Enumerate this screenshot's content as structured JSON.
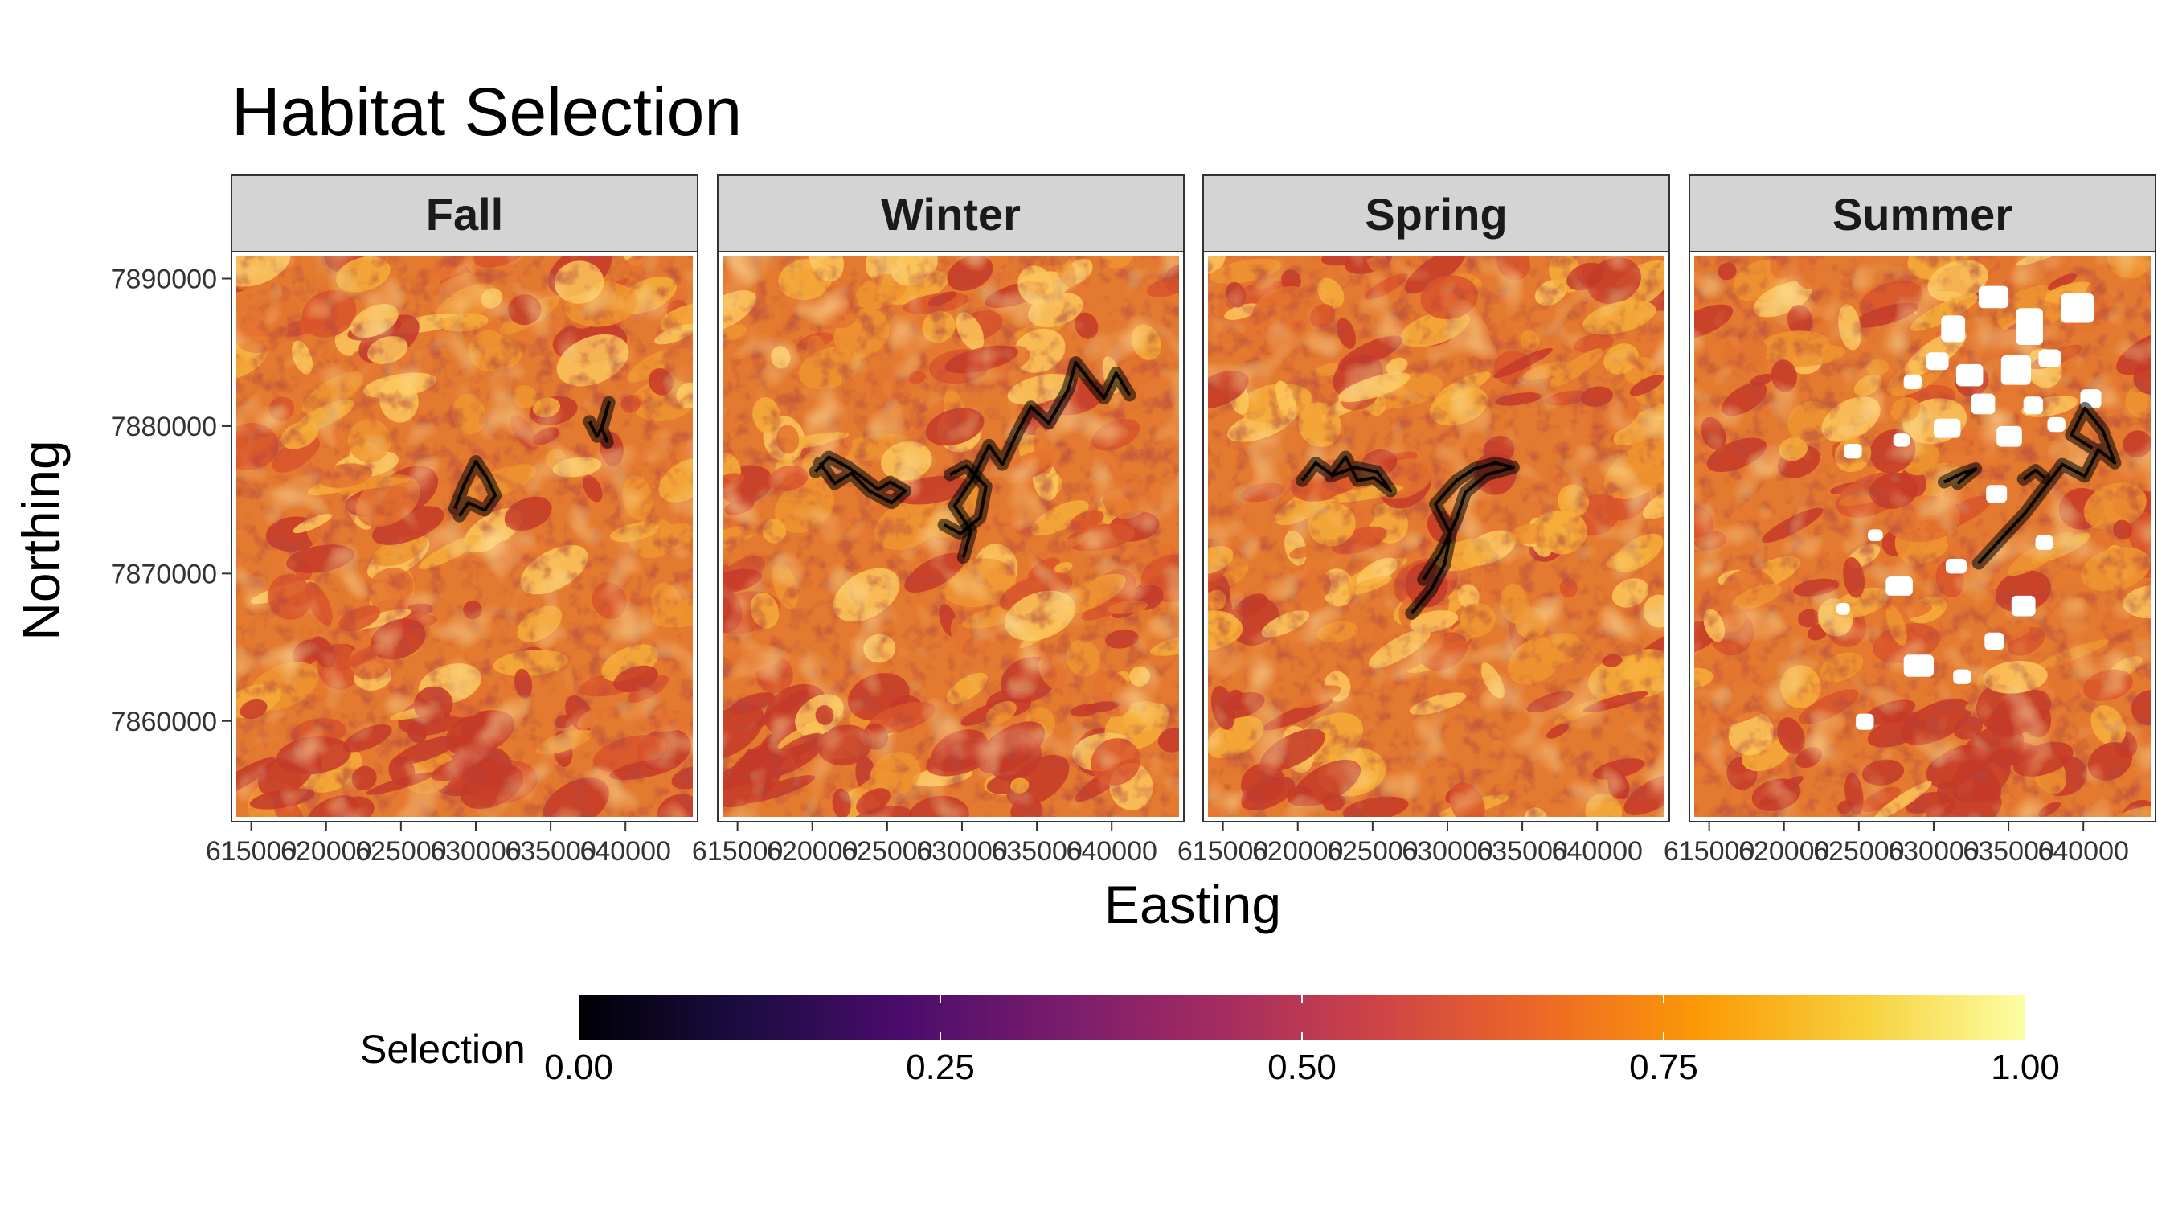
{
  "chart_data": {
    "type": "heatmap",
    "title": "Habitat Selection",
    "xlabel": "Easting",
    "ylabel": "Northing",
    "facets": [
      "Fall",
      "Winter",
      "Spring",
      "Summer"
    ],
    "xlim": [
      614000,
      644500
    ],
    "ylim": [
      7853500,
      7891500
    ],
    "x_ticks": [
      615000,
      620000,
      625000,
      630000,
      635000,
      640000
    ],
    "x_tick_labels": [
      "615000",
      "620000",
      "625000",
      "630000",
      "635000",
      "640000"
    ],
    "y_ticks": [
      7860000,
      7870000,
      7880000,
      7890000
    ],
    "y_tick_labels": [
      "7860000",
      "7870000",
      "7880000",
      "7890000"
    ],
    "grid": false,
    "legend": {
      "title": "Selection",
      "position": "bottom",
      "range": [
        0,
        1
      ],
      "ticks": [
        0,
        0.25,
        0.5,
        0.75,
        1
      ],
      "tick_labels": [
        "0.00",
        "0.25",
        "0.50",
        "0.75",
        "1.00"
      ],
      "colormap": "inferno",
      "colors": [
        "#000004",
        "#1b0c41",
        "#4a0c6b",
        "#781c6d",
        "#a52c60",
        "#cf4446",
        "#ed6925",
        "#fb9b06",
        "#f7d13d",
        "#fcffa4"
      ]
    },
    "raster_colors": [
      "#c53a28",
      "#d9552a",
      "#e4742f",
      "#ef9430",
      "#f6ad3a",
      "#fbc65a"
    ],
    "track_color": "#000000",
    "tracks": {
      "Fall": [
        [
          [
            628600,
            7874400
          ],
          [
            629200,
            7876000
          ],
          [
            630000,
            7877600
          ],
          [
            630800,
            7876400
          ],
          [
            631300,
            7875300
          ],
          [
            630600,
            7874300
          ],
          [
            629500,
            7874800
          ],
          [
            628900,
            7873900
          ]
        ],
        [
          [
            637600,
            7880300
          ],
          [
            638100,
            7879300
          ],
          [
            638500,
            7880100
          ],
          [
            638900,
            7881600
          ],
          [
            638400,
            7879900
          ],
          [
            638800,
            7878900
          ]
        ]
      ],
      "Winter": [
        [
          [
            620200,
            7876900
          ],
          [
            621100,
            7877900
          ],
          [
            622400,
            7877200
          ],
          [
            623500,
            7876400
          ],
          [
            624400,
            7875700
          ],
          [
            625200,
            7876200
          ],
          [
            626200,
            7875600
          ],
          [
            625300,
            7874800
          ],
          [
            623800,
            7875600
          ],
          [
            622600,
            7876800
          ],
          [
            621500,
            7876100
          ],
          [
            620500,
            7877500
          ]
        ],
        [
          [
            630100,
            7871100
          ],
          [
            630600,
            7872900
          ],
          [
            629500,
            7874600
          ],
          [
            630700,
            7876400
          ],
          [
            631800,
            7878700
          ],
          [
            632700,
            7877400
          ],
          [
            633700,
            7879600
          ],
          [
            634600,
            7881300
          ],
          [
            635800,
            7880200
          ],
          [
            637100,
            7882500
          ],
          [
            637600,
            7884300
          ],
          [
            638600,
            7883000
          ],
          [
            639500,
            7881900
          ],
          [
            640300,
            7883600
          ],
          [
            641200,
            7882100
          ]
        ],
        [
          [
            628800,
            7873300
          ],
          [
            629900,
            7872700
          ],
          [
            631200,
            7873800
          ],
          [
            631600,
            7875900
          ],
          [
            630300,
            7877300
          ],
          [
            629200,
            7876700
          ]
        ]
      ],
      "Spring": [
        [
          [
            620300,
            7876300
          ],
          [
            621200,
            7877500
          ],
          [
            622300,
            7876700
          ],
          [
            623200,
            7877900
          ],
          [
            624000,
            7876300
          ],
          [
            625100,
            7876500
          ],
          [
            626200,
            7875600
          ],
          [
            625300,
            7876900
          ],
          [
            623800,
            7877200
          ],
          [
            622200,
            7876600
          ]
        ],
        [
          [
            627600,
            7867300
          ],
          [
            628900,
            7868900
          ],
          [
            629800,
            7870600
          ],
          [
            630200,
            7872700
          ],
          [
            629200,
            7874700
          ],
          [
            630600,
            7876300
          ],
          [
            631800,
            7877100
          ],
          [
            633200,
            7877500
          ],
          [
            634400,
            7877200
          ],
          [
            632600,
            7876700
          ],
          [
            631200,
            7875500
          ],
          [
            630600,
            7873700
          ],
          [
            629600,
            7871500
          ],
          [
            628400,
            7869600
          ]
        ]
      ],
      "Summer": [
        [
          [
            633000,
            7870700
          ],
          [
            636100,
            7874100
          ],
          [
            638600,
            7877400
          ],
          [
            640100,
            7876600
          ],
          [
            641000,
            7878400
          ],
          [
            642100,
            7877500
          ],
          [
            641300,
            7879700
          ],
          [
            640100,
            7881200
          ],
          [
            639200,
            7879400
          ],
          [
            640600,
            7878500
          ]
        ],
        [
          [
            630700,
            7876200
          ],
          [
            631900,
            7876800
          ],
          [
            632800,
            7877100
          ],
          [
            631600,
            7876100
          ]
        ],
        [
          [
            636000,
            7876400
          ],
          [
            636800,
            7877000
          ],
          [
            637400,
            7876500
          ]
        ]
      ]
    },
    "missing_data_regions": {
      "Summer": [
        [
          630500,
          7887500,
          1600,
          1800
        ],
        [
          633000,
          7889500,
          2000,
          1500
        ],
        [
          635500,
          7888000,
          1800,
          2500
        ],
        [
          638500,
          7889000,
          2200,
          2000
        ],
        [
          629500,
          7885000,
          1500,
          1200
        ],
        [
          631500,
          7884200,
          1800,
          1500
        ],
        [
          634500,
          7884800,
          2000,
          2000
        ],
        [
          637000,
          7885200,
          1500,
          1200
        ],
        [
          628000,
          7883500,
          1200,
          1000
        ],
        [
          632500,
          7882200,
          1600,
          1400
        ],
        [
          636000,
          7882000,
          1300,
          1200
        ],
        [
          639800,
          7882500,
          1400,
          1300
        ],
        [
          630000,
          7880500,
          1800,
          1300
        ],
        [
          634200,
          7880000,
          1700,
          1400
        ],
        [
          637600,
          7880600,
          1200,
          1000
        ],
        [
          624000,
          7878800,
          1200,
          1000
        ],
        [
          627300,
          7879500,
          1100,
          900
        ],
        [
          633500,
          7876000,
          1400,
          1200
        ],
        [
          625600,
          7873000,
          1000,
          800
        ],
        [
          630800,
          7871000,
          1400,
          1000
        ],
        [
          635200,
          7868500,
          1600,
          1400
        ],
        [
          633400,
          7866000,
          1300,
          1200
        ],
        [
          626800,
          7869800,
          1800,
          1300
        ],
        [
          628000,
          7864500,
          2000,
          1500
        ],
        [
          624800,
          7860500,
          1200,
          1100
        ],
        [
          631300,
          7863500,
          1200,
          1000
        ],
        [
          623500,
          7868000,
          900,
          800
        ],
        [
          636800,
          7872600,
          1200,
          1000
        ]
      ]
    }
  }
}
